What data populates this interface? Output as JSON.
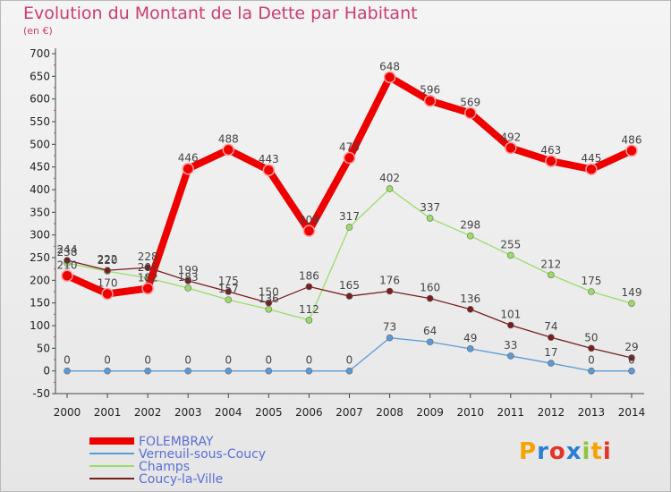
{
  "chart_data": {
    "type": "line",
    "title": "Evolution du Montant de la Dette par Habitant",
    "subtitle": "(en €)",
    "x": [
      2000,
      2001,
      2002,
      2003,
      2004,
      2005,
      2006,
      2007,
      2008,
      2009,
      2010,
      2011,
      2012,
      2013,
      2014
    ],
    "ylim": [
      -50,
      700
    ],
    "yticks": [
      -50,
      0,
      50,
      100,
      150,
      200,
      250,
      300,
      350,
      400,
      450,
      500,
      550,
      600,
      650,
      700
    ],
    "grid": false,
    "legend_position": "bottom-left",
    "series": [
      {
        "name": "FOLEMBRAY",
        "color": "#ee0000",
        "values": [
          210,
          170,
          182,
          446,
          488,
          443,
          309,
          470,
          648,
          596,
          569,
          492,
          463,
          445,
          486
        ],
        "labels": [
          "210",
          "170",
          "182",
          "446",
          "488",
          "443",
          "309",
          "470",
          "648",
          "596",
          "569",
          "492",
          "463",
          "445",
          "486"
        ]
      },
      {
        "name": "Verneuil-sous-Coucy",
        "color": "#5b9bd5",
        "values": [
          0,
          0,
          0,
          0,
          0,
          0,
          0,
          0,
          73,
          64,
          49,
          33,
          17,
          0,
          0
        ],
        "labels": [
          "0",
          "0",
          "0",
          "0",
          "0",
          "0",
          "0",
          "0",
          "73",
          "64",
          "49",
          "33",
          "17",
          "0",
          "0"
        ]
      },
      {
        "name": "Champs",
        "color": "#99dd66",
        "values": [
          238,
          220,
          205,
          183,
          157,
          136,
          112,
          317,
          402,
          337,
          298,
          255,
          212,
          175,
          149
        ],
        "labels": [
          "238",
          "220",
          "205",
          "183",
          "157",
          "136",
          "112",
          "317",
          "402",
          "337",
          "298",
          "255",
          "212",
          "175",
          "149"
        ]
      },
      {
        "name": "Coucy-la-Ville",
        "color": "#771f1f",
        "values": [
          244,
          222,
          228,
          199,
          175,
          150,
          186,
          165,
          176,
          160,
          136,
          101,
          74,
          50,
          29
        ],
        "labels": [
          "244",
          "222",
          "228",
          "199",
          "175",
          "150",
          "186",
          "165",
          "176",
          "160",
          "136",
          "101",
          "74",
          "50",
          "29"
        ]
      }
    ]
  },
  "branding": {
    "logo_letters": [
      "P",
      "r",
      "o",
      "x",
      "i",
      "t",
      "i"
    ],
    "logo_colors": [
      "#f4a300",
      "#2a7fd4",
      "#e6332a",
      "#2a7fd4",
      "#8cc63f",
      "#f4a300",
      "#e6332a"
    ]
  }
}
